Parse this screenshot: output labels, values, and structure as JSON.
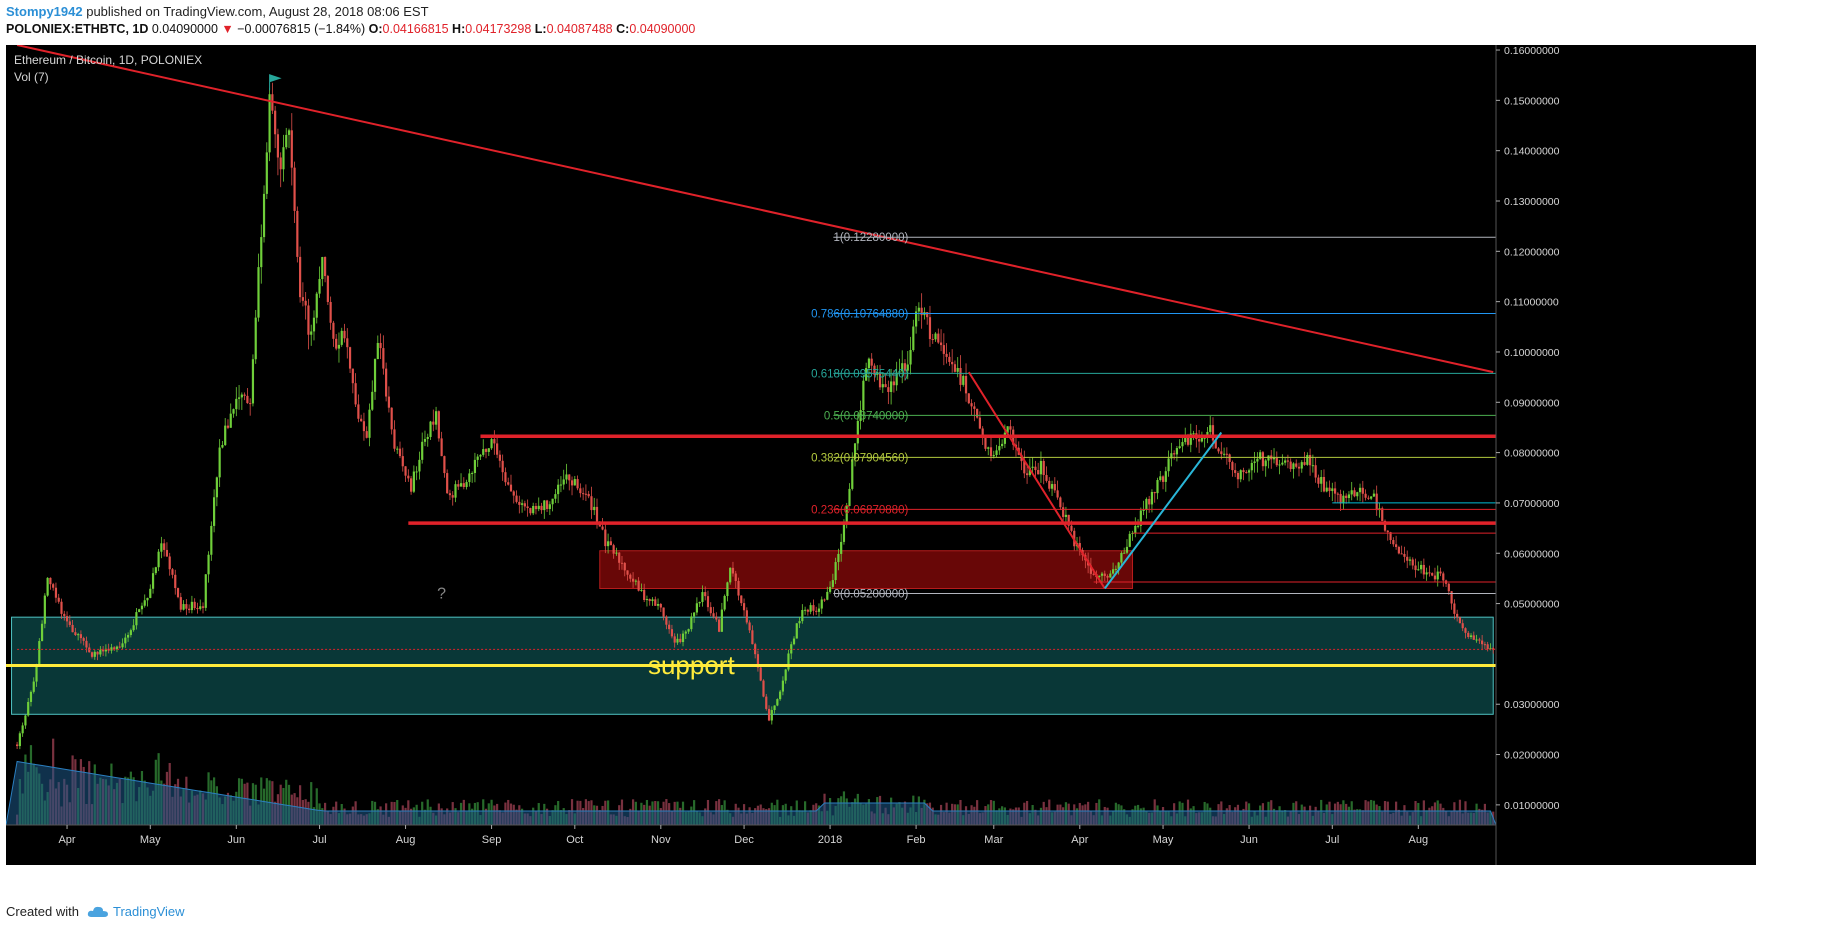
{
  "header": {
    "publisher": "Stompy1942",
    "published_text": "published on TradingView.com, August 28, 2018 08:06 EST",
    "symbol": "POLONIEX:ETHBTC, 1D",
    "last": "0.04090000",
    "change_arrow": "▼",
    "change": "−0.00076815 (−1.84%)",
    "o_label": "O:",
    "o_value": "0.04166815",
    "h_label": "H:",
    "h_value": "0.04173298",
    "l_label": "L:",
    "l_value": "0.04087488",
    "c_label": "C:",
    "c_value": "0.04090000"
  },
  "footer": {
    "created_with": "Created with",
    "brand": "TradingView"
  },
  "chart_data": {
    "type": "candlestick",
    "title": "Ethereum / Bitcoin, 1D, POLONIEX",
    "indicator_label": "Vol (7)",
    "ylim": [
      0.006,
      0.161
    ],
    "y_ticks": [
      "0.16000000",
      "0.15000000",
      "0.14000000",
      "0.13000000",
      "0.12000000",
      "0.11000000",
      "0.10000000",
      "0.09000000",
      "0.08000000",
      "0.07000000",
      "0.06000000",
      "0.05000000",
      "0.03000000",
      "0.02000000",
      "0.01000000"
    ],
    "x_ticks": [
      "Apr",
      "May",
      "Jun",
      "Jul",
      "Aug",
      "Sep",
      "Oct",
      "Nov",
      "Dec",
      "2018",
      "Feb",
      "Mar",
      "Apr",
      "May",
      "Jun",
      "Jul",
      "Aug"
    ],
    "price_path": [
      [
        "2017-03-14",
        0.022
      ],
      [
        "2017-03-20",
        0.034
      ],
      [
        "2017-03-25",
        0.055
      ],
      [
        "2017-04-01",
        0.046
      ],
      [
        "2017-04-10",
        0.04
      ],
      [
        "2017-04-20",
        0.041
      ],
      [
        "2017-05-01",
        0.053
      ],
      [
        "2017-05-05",
        0.063
      ],
      [
        "2017-05-12",
        0.049
      ],
      [
        "2017-05-20",
        0.05
      ],
      [
        "2017-05-26",
        0.08
      ],
      [
        "2017-06-01",
        0.092
      ],
      [
        "2017-06-06",
        0.09
      ],
      [
        "2017-06-10",
        0.125
      ],
      [
        "2017-06-13",
        0.15
      ],
      [
        "2017-06-16",
        0.137
      ],
      [
        "2017-06-20",
        0.142
      ],
      [
        "2017-06-24",
        0.112
      ],
      [
        "2017-06-28",
        0.103
      ],
      [
        "2017-07-02",
        0.12
      ],
      [
        "2017-07-06",
        0.101
      ],
      [
        "2017-07-10",
        0.104
      ],
      [
        "2017-07-14",
        0.089
      ],
      [
        "2017-07-18",
        0.082
      ],
      [
        "2017-07-22",
        0.103
      ],
      [
        "2017-07-28",
        0.081
      ],
      [
        "2017-08-03",
        0.073
      ],
      [
        "2017-08-08",
        0.083
      ],
      [
        "2017-08-12",
        0.087
      ],
      [
        "2017-08-16",
        0.071
      ],
      [
        "2017-08-22",
        0.074
      ],
      [
        "2017-08-28",
        0.08
      ],
      [
        "2017-09-02",
        0.082
      ],
      [
        "2017-09-08",
        0.072
      ],
      [
        "2017-09-15",
        0.068
      ],
      [
        "2017-09-22",
        0.07
      ],
      [
        "2017-09-28",
        0.075
      ],
      [
        "2017-10-04",
        0.072
      ],
      [
        "2017-10-08",
        0.069
      ],
      [
        "2017-10-12",
        0.062
      ],
      [
        "2017-10-18",
        0.058
      ],
      [
        "2017-10-25",
        0.052
      ],
      [
        "2017-11-01",
        0.049
      ],
      [
        "2017-11-06",
        0.042
      ],
      [
        "2017-11-10",
        0.044
      ],
      [
        "2017-11-16",
        0.052
      ],
      [
        "2017-11-22",
        0.045
      ],
      [
        "2017-11-26",
        0.058
      ],
      [
        "2017-11-30",
        0.05
      ],
      [
        "2017-12-04",
        0.042
      ],
      [
        "2017-12-08",
        0.032
      ],
      [
        "2017-12-10",
        0.027
      ],
      [
        "2017-12-14",
        0.033
      ],
      [
        "2017-12-18",
        0.042
      ],
      [
        "2017-12-22",
        0.049
      ],
      [
        "2017-12-28",
        0.049
      ],
      [
        "2018-01-02",
        0.055
      ],
      [
        "2018-01-05",
        0.063
      ],
      [
        "2018-01-08",
        0.074
      ],
      [
        "2018-01-12",
        0.09
      ],
      [
        "2018-01-15",
        0.098
      ],
      [
        "2018-01-20",
        0.092
      ],
      [
        "2018-01-25",
        0.095
      ],
      [
        "2018-01-30",
        0.1
      ],
      [
        "2018-02-02",
        0.11
      ],
      [
        "2018-02-06",
        0.104
      ],
      [
        "2018-02-12",
        0.099
      ],
      [
        "2018-02-18",
        0.094
      ],
      [
        "2018-02-24",
        0.084
      ],
      [
        "2018-03-01",
        0.079
      ],
      [
        "2018-03-06",
        0.085
      ],
      [
        "2018-03-12",
        0.076
      ],
      [
        "2018-03-18",
        0.077
      ],
      [
        "2018-03-24",
        0.071
      ],
      [
        "2018-03-30",
        0.062
      ],
      [
        "2018-04-05",
        0.056
      ],
      [
        "2018-04-10",
        0.055
      ],
      [
        "2018-04-15",
        0.058
      ],
      [
        "2018-04-20",
        0.064
      ],
      [
        "2018-04-25",
        0.07
      ],
      [
        "2018-05-01",
        0.075
      ],
      [
        "2018-05-05",
        0.081
      ],
      [
        "2018-05-12",
        0.083
      ],
      [
        "2018-05-18",
        0.084
      ],
      [
        "2018-05-22",
        0.08
      ],
      [
        "2018-05-28",
        0.075
      ],
      [
        "2018-06-03",
        0.079
      ],
      [
        "2018-06-10",
        0.078
      ],
      [
        "2018-06-16",
        0.077
      ],
      [
        "2018-06-22",
        0.079
      ],
      [
        "2018-06-28",
        0.073
      ],
      [
        "2018-07-04",
        0.071
      ],
      [
        "2018-07-10",
        0.072
      ],
      [
        "2018-07-16",
        0.071
      ],
      [
        "2018-07-20",
        0.065
      ],
      [
        "2018-07-25",
        0.06
      ],
      [
        "2018-08-01",
        0.057
      ],
      [
        "2018-08-06",
        0.056
      ],
      [
        "2018-08-10",
        0.055
      ],
      [
        "2018-08-15",
        0.047
      ],
      [
        "2018-08-20",
        0.043
      ],
      [
        "2018-08-28",
        0.0409
      ]
    ],
    "volume_note": "green/red volume bars with blue 7-period volume average",
    "trendline": {
      "from": [
        "2017-03-14",
        0.161
      ],
      "to": [
        "2018-08-28",
        0.096
      ],
      "color": "#e0222a"
    },
    "fib_levels": [
      {
        "label": "1(0.12280000)",
        "value": 0.1228,
        "color": "#b2b5be"
      },
      {
        "label": "0.786(0.10764880)",
        "value": 0.1076488,
        "color": "#2196f3"
      },
      {
        "label": "0.618(0.09575440)",
        "value": 0.0957544,
        "color": "#26a69a"
      },
      {
        "label": "0.5(0.08740000)",
        "value": 0.0874,
        "color": "#4caf50"
      },
      {
        "label": "0.382(0.07904560)",
        "value": 0.0790456,
        "color": "#b3c93e"
      },
      {
        "label": "0.236(0.06870880)",
        "value": 0.0687088,
        "color": "#e0222a"
      },
      {
        "label": "0(0.05200000)",
        "value": 0.052,
        "color": "#b2b5be"
      }
    ],
    "horizontal_levels": [
      {
        "value": 0.08325378,
        "label": "0.08325378",
        "color": "#e0222a"
      },
      {
        "value": 0.07,
        "label": "0.07000000",
        "color": "#00bcd4"
      },
      {
        "value": 0.066,
        "label": "0.06600000",
        "color": "#e0222a"
      },
      {
        "value": 0.064,
        "label": "0.06400000",
        "color": "#e0222a"
      },
      {
        "value": 0.05429135,
        "label": "0.05429135",
        "color": "#e0222a"
      },
      {
        "value": 0.0409,
        "label": "0.04090000",
        "color": "#e0222a"
      },
      {
        "value": 0.0376864,
        "label": "0.03768640",
        "color": "#ffeb3b"
      }
    ],
    "zones": [
      {
        "name": "red-zone",
        "from_date": "2017-10-10",
        "to_date": "2018-04-20",
        "low": 0.053,
        "high": 0.0605,
        "color": "#8b0a0a"
      },
      {
        "name": "teal-zone",
        "from_date": "2017-03-12",
        "to_date": "2018-08-28",
        "low": 0.028,
        "high": 0.0473,
        "color": "#0c4a4a"
      }
    ],
    "annotations": [
      {
        "text": "support",
        "date": "2017-11-12",
        "value": 0.036,
        "color": "#ffeb3b"
      },
      {
        "text": "?",
        "date": "2017-08-14",
        "value": 0.051,
        "color": "#888888"
      }
    ]
  }
}
